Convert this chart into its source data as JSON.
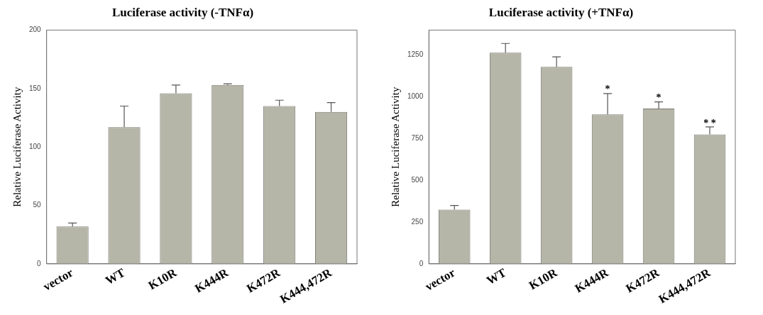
{
  "chart_data": [
    {
      "type": "bar",
      "title": "Luciferase activity (-TNFα)",
      "ylabel": "Relative Luciferase Activity",
      "categories": [
        "vector",
        "WT",
        "K10R",
        "K444R",
        "K472R",
        "K444,472R"
      ],
      "values": [
        32,
        117,
        146,
        153,
        135,
        130
      ],
      "errors": [
        3,
        18,
        7,
        1,
        5,
        8
      ],
      "color": "#b5b5a8",
      "ylim": [
        0,
        200
      ],
      "yticks": [
        0,
        50,
        100,
        150,
        200
      ],
      "grid": false,
      "legend": false
    },
    {
      "type": "bar",
      "title": "Luciferase activity (+TNFα)",
      "ylabel": "Relative Luciferase Activity",
      "categories": [
        "vector",
        "WT",
        "K10R",
        "K444R",
        "K472R",
        "K444,472R"
      ],
      "values": [
        325,
        1265,
        1180,
        895,
        930,
        775
      ],
      "errors": [
        25,
        55,
        60,
        125,
        40,
        45
      ],
      "color": "#b5b5a8",
      "ylim": [
        0,
        1400
      ],
      "yticks": [
        0,
        250,
        500,
        750,
        1000,
        1250
      ],
      "grid": false,
      "legend": false,
      "annotations": [
        {
          "text": "*",
          "x": "K444R",
          "y": 1020
        },
        {
          "text": "*",
          "x": "K472R",
          "y": 970
        },
        {
          "text": "* *",
          "x": "K444,472R",
          "y": 820
        }
      ]
    }
  ]
}
